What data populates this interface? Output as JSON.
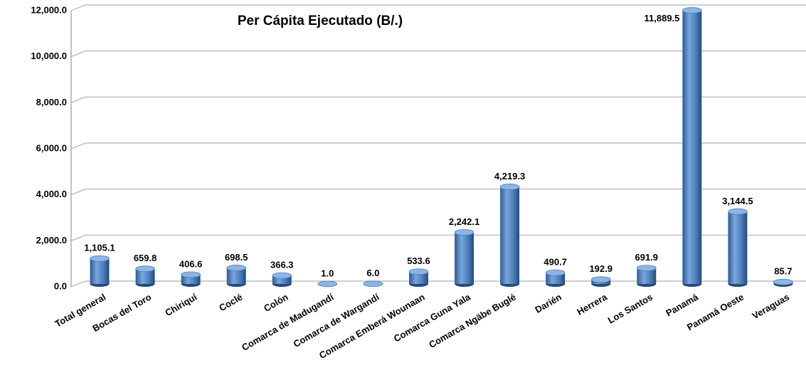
{
  "chart_data": {
    "type": "bar",
    "title": "Per Cápita Ejecutado (B/.)",
    "categories": [
      "Total general",
      "Bocas del Toro",
      "Chiriquí",
      "Coclé",
      "Colón",
      "Comarca de Madugandí",
      "Comarca de Wargandí",
      "Comarca Emberá Wounaan",
      "Comarca Guna Yala",
      "Comarca Ngäbe Buglé",
      "Darién",
      "Herrera",
      "Los Santos",
      "Panamá",
      "Panamá Oeste",
      "Veraguas"
    ],
    "values": [
      1105.1,
      659.8,
      406.6,
      698.5,
      366.3,
      1.0,
      6.0,
      533.6,
      2242.1,
      4219.3,
      490.7,
      192.9,
      691.9,
      11889.5,
      3144.5,
      85.7
    ],
    "value_labels": [
      "1,105.1",
      "659.8",
      "406.6",
      "698.5",
      "366.3",
      "1.0",
      "6.0",
      "533.6",
      "2,242.1",
      "4,219.3",
      "490.7",
      "192.9",
      "691.9",
      "11,889.5",
      "3,144.5",
      "85.7"
    ],
    "color": "#4a7ebb",
    "ylim": [
      0,
      12000
    ],
    "yticks": [
      {
        "value": 0,
        "label": "0.0"
      },
      {
        "value": 2000,
        "label": "2,000.0"
      },
      {
        "value": 4000,
        "label": "4,000.0"
      },
      {
        "value": 6000,
        "label": "6,000.0"
      },
      {
        "value": 8000,
        "label": "8,000.0"
      },
      {
        "value": 10000,
        "label": "10,000.0"
      },
      {
        "value": 12000,
        "label": "12,000.0"
      }
    ],
    "grid": true
  }
}
